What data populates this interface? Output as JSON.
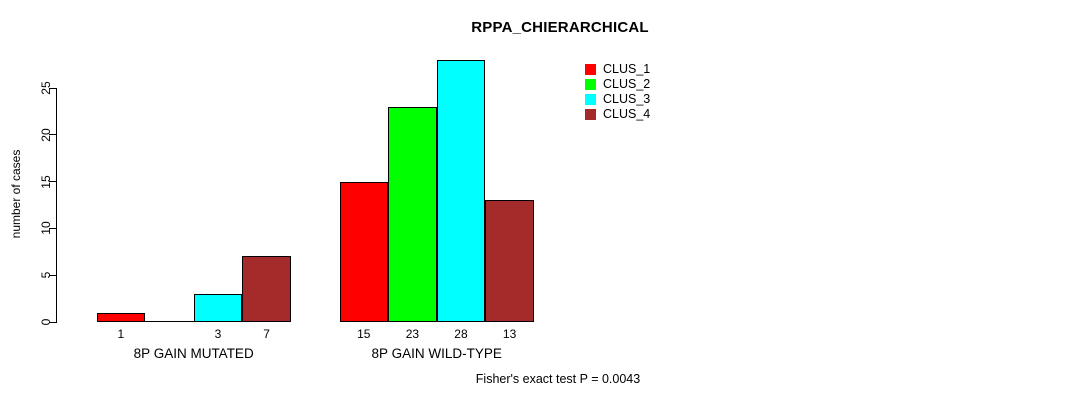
{
  "chart_data": {
    "type": "bar",
    "title": "RPPA_CHIERARCHICAL",
    "xlabel": "",
    "ylabel": "number of cases",
    "ylim": [
      0,
      28
    ],
    "yticks": [
      0,
      5,
      10,
      15,
      20,
      25
    ],
    "grid": false,
    "categories": [
      "8P GAIN MUTATED",
      "8P GAIN WILD-TYPE"
    ],
    "series": [
      {
        "name": "CLUS_1",
        "color": "#ff0000",
        "values": [
          1,
          15
        ]
      },
      {
        "name": "CLUS_2",
        "color": "#00ff00",
        "values": [
          0,
          23
        ]
      },
      {
        "name": "CLUS_3",
        "color": "#00ffff",
        "values": [
          3,
          28
        ]
      },
      {
        "name": "CLUS_4",
        "color": "#a52a2a",
        "values": [
          7,
          13
        ]
      }
    ],
    "bar_value_labels": [
      [
        "1",
        "",
        "3",
        "7"
      ],
      [
        "15",
        "23",
        "28",
        "13"
      ]
    ],
    "legend": {
      "position": "top-right",
      "entries": [
        "CLUS_1",
        "CLUS_2",
        "CLUS_3",
        "CLUS_4"
      ]
    },
    "annotation": "Fisher's exact test P = 0.0043"
  }
}
